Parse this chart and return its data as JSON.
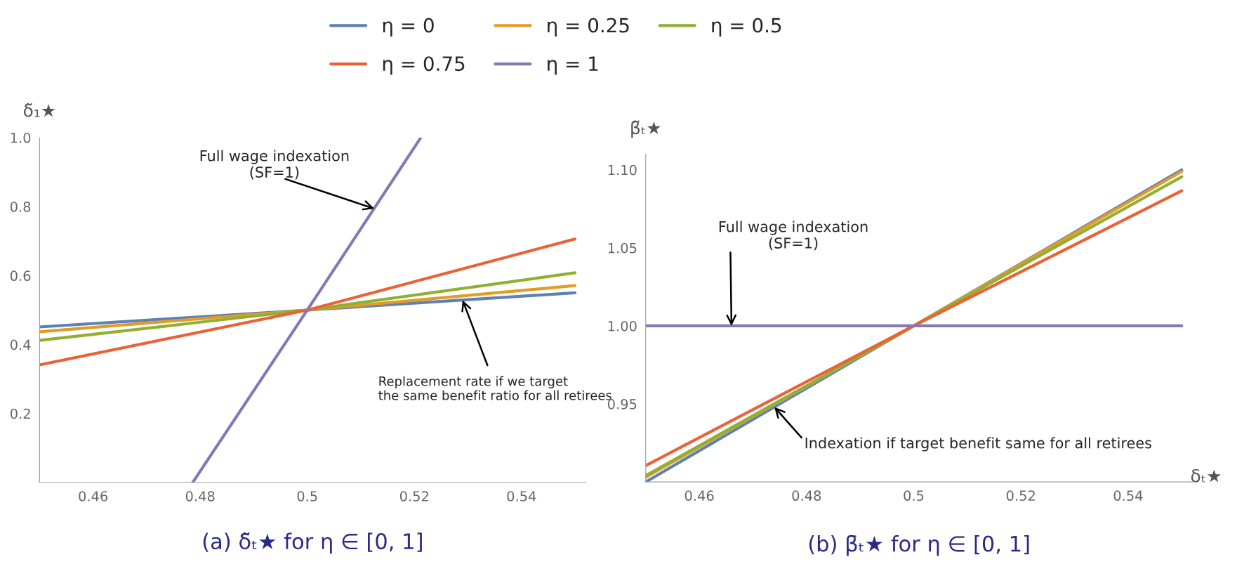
{
  "chart_data": [
    {
      "type": "line",
      "title": "(a) δ̃ₜ★ for η ∈ [0, 1]",
      "ylabel": "δ̃₁★",
      "xlim": [
        0.45,
        0.552
      ],
      "ylim": [
        0,
        1.0
      ],
      "xticks": [
        0.46,
        0.48,
        0.5,
        0.52,
        0.54
      ],
      "yticks": [
        {
          "value": 0.2,
          "label": "0.2"
        },
        {
          "value": 0.4,
          "label": "0.4"
        },
        {
          "value": 0.6,
          "label": "0.6"
        },
        {
          "value": 0.8,
          "label": "0.8"
        },
        {
          "value": 1.0,
          "label": "1.0"
        }
      ],
      "grid": false,
      "legend": "top",
      "series": [
        {
          "name": "η = 0",
          "color": "#5e81b5",
          "x": [
            0.45,
            0.5,
            0.55
          ],
          "values": [
            0.451,
            0.5,
            0.55
          ]
        },
        {
          "name": "η = 0.25",
          "color": "#e19c24",
          "x": [
            0.45,
            0.5,
            0.55
          ],
          "values": [
            0.437,
            0.5,
            0.571
          ]
        },
        {
          "name": "η = 0.5",
          "color": "#8fb032",
          "x": [
            0.45,
            0.5,
            0.55
          ],
          "values": [
            0.412,
            0.5,
            0.608
          ]
        },
        {
          "name": "η = 0.75",
          "color": "#eb6235",
          "x": [
            0.45,
            0.5,
            0.55
          ],
          "values": [
            0.341,
            0.5,
            0.706
          ]
        },
        {
          "name": "η = 1",
          "color": "#8778b3",
          "x": [
            0.4786,
            0.5,
            0.5212
          ],
          "values": [
            0,
            0.5,
            1.0
          ]
        }
      ],
      "annotations": [
        {
          "text": "Full wage indexation\n(SF=1)",
          "x": 0.5125,
          "y": 0.794
        },
        {
          "text": "Replacement rate if we target\nthe same benefit ratio for all retirees",
          "x": 0.529,
          "y": 0.529
        }
      ]
    },
    {
      "type": "line",
      "title": "(b) β̄ₜ★ for η ∈ [0, 1]",
      "xlabel": "δₜ★",
      "ylabel": "β̃ₜ★",
      "xlim": [
        0.45,
        0.552
      ],
      "ylim": [
        0.9,
        1.11
      ],
      "xticks": [
        0.46,
        0.48,
        0.5,
        0.52,
        0.54
      ],
      "yticks": [
        {
          "value": 0.95,
          "label": "0.95"
        },
        {
          "value": 1.0,
          "label": "1.00"
        },
        {
          "value": 1.05,
          "label": "1.05"
        },
        {
          "value": 1.1,
          "label": "1.10"
        }
      ],
      "grid": false,
      "series": [
        {
          "color": "#5e81b5",
          "x": [
            0.45,
            0.5,
            0.55
          ],
          "values": [
            0.9,
            1.0,
            1.1
          ]
        },
        {
          "color": "#e19c24",
          "x": [
            0.45,
            0.5,
            0.55
          ],
          "values": [
            0.903,
            1.0,
            1.099
          ]
        },
        {
          "color": "#8fb032",
          "x": [
            0.45,
            0.5,
            0.55
          ],
          "values": [
            0.904,
            1.0,
            1.0955
          ]
        },
        {
          "color": "#eb6235",
          "x": [
            0.45,
            0.5,
            0.55
          ],
          "values": [
            0.9105,
            1.0,
            1.0865
          ]
        },
        {
          "color": "#8778b3",
          "x": [
            0.45,
            0.5,
            0.55
          ],
          "values": [
            1.0,
            1.0,
            1.0
          ]
        }
      ],
      "annotations": [
        {
          "text": "Full wage indexation\n(SF=1)",
          "x": 0.466,
          "y": 1.0
        },
        {
          "text": "Indexation if target benefit same for all retirees",
          "x": 0.474,
          "y": 0.948
        }
      ]
    }
  ]
}
